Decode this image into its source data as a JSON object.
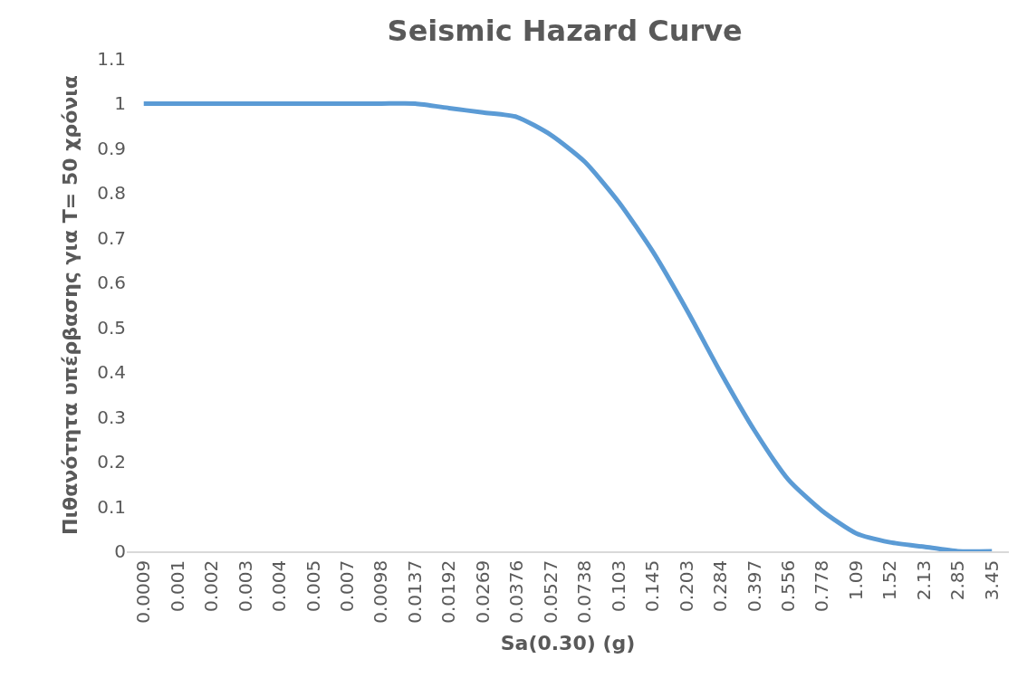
{
  "chart_data": {
    "type": "line",
    "title": "Seismic Hazard Curve",
    "xlabel": "Sa(0.30) (g)",
    "ylabel": "Πιθανότητα υπέρβασης για T= 50 χρόνια",
    "categories": [
      "0.0009",
      "0.001",
      "0.002",
      "0.003",
      "0.004",
      "0.005",
      "0.007",
      "0.0098",
      "0.0137",
      "0.0192",
      "0.0269",
      "0.0376",
      "0.0527",
      "0.0738",
      "0.103",
      "0.145",
      "0.203",
      "0.284",
      "0.397",
      "0.556",
      "0.778",
      "1.09",
      "1.52",
      "2.13",
      "2.85",
      "3.45"
    ],
    "series": [
      {
        "color": "#5b9bd5",
        "values": [
          1.0,
          1.0,
          1.0,
          1.0,
          1.0,
          1.0,
          1.0,
          1.0,
          1.0,
          0.99,
          0.98,
          0.97,
          0.93,
          0.87,
          0.78,
          0.67,
          0.54,
          0.4,
          0.27,
          0.16,
          0.09,
          0.04,
          0.02,
          0.01,
          0.0,
          0.0
        ]
      }
    ],
    "ylim": [
      0,
      1.1
    ],
    "yticks": [
      0,
      0.1,
      0.2,
      0.3,
      0.4,
      0.5,
      0.6,
      0.7,
      0.8,
      0.9,
      1,
      1.1
    ],
    "marker": "none",
    "line_style": "solid"
  }
}
